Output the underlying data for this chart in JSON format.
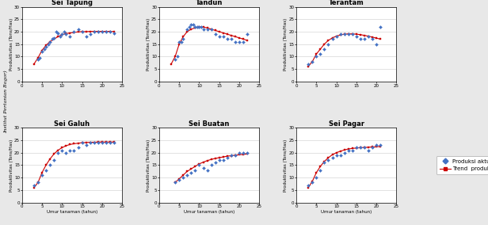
{
  "panels": [
    {
      "title": "Sei Tapung",
      "scatter_x": [
        4,
        4.5,
        5,
        5.5,
        6,
        6.5,
        7,
        7.5,
        8,
        8.5,
        9,
        9.5,
        10,
        10.5,
        11,
        12,
        13,
        14,
        15,
        16,
        17,
        18,
        19,
        20,
        21,
        22,
        23
      ],
      "scatter_y": [
        9,
        9.5,
        12,
        13,
        14,
        15,
        16,
        17,
        17.5,
        20,
        19.5,
        18,
        19,
        20,
        19,
        18,
        20,
        21,
        20,
        18,
        19,
        20,
        20,
        20,
        20,
        20,
        19.5
      ],
      "trend_x": [
        3,
        4,
        5,
        6,
        7,
        8,
        9,
        10,
        11,
        12,
        13,
        14,
        15,
        16,
        17,
        18,
        19,
        20,
        21,
        22,
        23
      ],
      "trend_y": [
        7,
        9.5,
        12.5,
        14.5,
        16,
        17,
        18,
        18.8,
        19.2,
        19.5,
        19.7,
        19.9,
        20.0,
        20.0,
        20.1,
        20.1,
        20.1,
        20.1,
        20.1,
        20.1,
        20.0
      ]
    },
    {
      "title": "Tandun",
      "scatter_x": [
        4,
        4.5,
        5,
        5.5,
        6,
        7,
        7.5,
        8,
        8.5,
        9,
        9.5,
        10,
        10.5,
        11,
        12,
        13,
        14,
        15,
        16,
        17,
        18,
        19,
        20,
        21,
        22
      ],
      "scatter_y": [
        9,
        10,
        16,
        16,
        17,
        21,
        22,
        23,
        23,
        22,
        22,
        22,
        22,
        21,
        21,
        21,
        19,
        18,
        18,
        17,
        17,
        16,
        16,
        16,
        19
      ],
      "trend_x": [
        3,
        4,
        5,
        6,
        7,
        8,
        9,
        10,
        11,
        12,
        13,
        14,
        15,
        16,
        17,
        18,
        19,
        20,
        21,
        22
      ],
      "trend_y": [
        7,
        10,
        15,
        18,
        20,
        21,
        21.5,
        22,
        21.8,
        21.5,
        21.0,
        20.5,
        20.0,
        19.5,
        19.0,
        18.5,
        18.0,
        17.5,
        17.0,
        16.5
      ]
    },
    {
      "title": "Terantam",
      "scatter_x": [
        3,
        4,
        5,
        6,
        7,
        8,
        9,
        10,
        11,
        12,
        13,
        14,
        15,
        16,
        17,
        18,
        19,
        20,
        21
      ],
      "scatter_y": [
        7,
        8,
        10,
        11,
        13,
        15,
        17,
        18,
        19,
        19,
        19,
        19,
        18,
        17,
        17,
        18,
        17,
        15,
        22
      ],
      "trend_x": [
        3,
        4,
        5,
        6,
        7,
        8,
        9,
        10,
        11,
        12,
        13,
        14,
        15,
        16,
        17,
        18,
        19,
        20,
        21
      ],
      "trend_y": [
        6,
        8,
        11,
        13,
        15,
        16.5,
        17.5,
        18.2,
        18.7,
        19.0,
        19.1,
        19.1,
        19.0,
        18.8,
        18.5,
        18.2,
        17.8,
        17.4,
        17.0
      ]
    },
    {
      "title": "Sei Galuh",
      "scatter_x": [
        3,
        4,
        5,
        6,
        7,
        8,
        9,
        10,
        11,
        12,
        13,
        14,
        15,
        16,
        17,
        18,
        19,
        20,
        21,
        22,
        23
      ],
      "scatter_y": [
        7,
        8,
        11,
        13,
        15,
        17,
        20,
        21,
        20,
        21,
        21,
        22,
        24,
        23,
        24,
        24,
        24,
        24,
        24,
        24,
        24
      ],
      "trend_x": [
        3,
        4,
        5,
        6,
        7,
        8,
        9,
        10,
        11,
        12,
        13,
        14,
        15,
        16,
        17,
        18,
        19,
        20,
        21,
        22,
        23
      ],
      "trend_y": [
        6,
        8,
        12,
        15,
        17.5,
        19.5,
        21,
        22,
        22.8,
        23.3,
        23.6,
        23.8,
        24.0,
        24.1,
        24.2,
        24.2,
        24.3,
        24.3,
        24.3,
        24.3,
        24.3
      ]
    },
    {
      "title": "Sei Buatan",
      "scatter_x": [
        4,
        5,
        6,
        7,
        8,
        9,
        10,
        11,
        12,
        13,
        14,
        15,
        16,
        17,
        18,
        19,
        20,
        21,
        22
      ],
      "scatter_y": [
        8,
        9,
        10,
        11,
        12,
        13,
        15,
        14,
        13,
        15,
        16,
        17,
        17,
        18,
        19,
        19,
        20,
        20,
        20
      ],
      "trend_x": [
        4,
        5,
        6,
        7,
        8,
        9,
        10,
        11,
        12,
        13,
        14,
        15,
        16,
        17,
        18,
        19,
        20,
        21,
        22
      ],
      "trend_y": [
        8,
        9.5,
        11,
        12.5,
        13.5,
        14.5,
        15.5,
        16.2,
        16.8,
        17.3,
        17.7,
        18.0,
        18.3,
        18.6,
        18.8,
        19.0,
        19.2,
        19.3,
        19.5
      ]
    },
    {
      "title": "Sei Pagar",
      "scatter_x": [
        3,
        4,
        5,
        6,
        7,
        8,
        9,
        10,
        11,
        12,
        13,
        14,
        15,
        16,
        17,
        18,
        19,
        20,
        21
      ],
      "scatter_y": [
        7,
        8,
        10,
        13,
        16,
        17,
        18,
        19,
        19,
        20,
        21,
        21,
        22,
        22,
        22,
        21,
        22,
        23,
        23
      ],
      "trend_x": [
        3,
        4,
        5,
        6,
        7,
        8,
        9,
        10,
        11,
        12,
        13,
        14,
        15,
        16,
        17,
        18,
        19,
        20,
        21
      ],
      "trend_y": [
        6,
        8.5,
        12,
        14.5,
        16.5,
        18,
        19.2,
        20.0,
        20.6,
        21.1,
        21.5,
        21.7,
        21.9,
        22.0,
        22.1,
        22.2,
        22.3,
        22.4,
        22.5
      ]
    }
  ],
  "scatter_color": "#4472C4",
  "trend_color": "#CC0000",
  "marker_scatter": "D",
  "marker_trend": "s",
  "scatter_size": 4,
  "trend_markersize": 2.0,
  "trend_linewidth": 0.8,
  "xlabel": "Umur tanaman (tahun)",
  "ylabel": "Produktivitas (Tons/Has)",
  "bg_color": "#e8e8e8",
  "plot_bg_color": "#ffffff",
  "legend_labels": [
    "Produksi aktual",
    "Trend  produksi"
  ],
  "ylabel_fontsize": 4,
  "xlabel_fontsize": 4,
  "title_fontsize": 6,
  "tick_fontsize": 4,
  "xlim": [
    0,
    25
  ],
  "ylim": [
    0,
    30
  ],
  "xticks": [
    0,
    5,
    10,
    15,
    20,
    25
  ],
  "yticks": [
    0,
    5,
    10,
    15,
    20,
    25,
    30
  ],
  "watermark_top": "Institut Pertanian Bogor)",
  "watermark_fontsize": 4.5
}
